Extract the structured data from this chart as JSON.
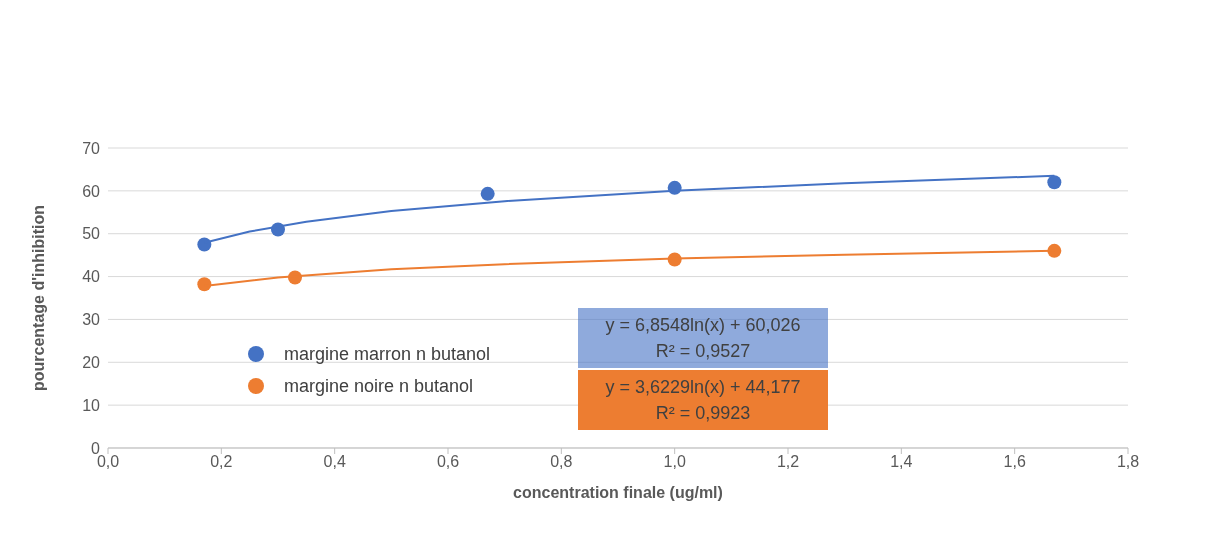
{
  "chart_data": {
    "type": "scatter",
    "xlabel": "concentration finale (ug/ml)",
    "ylabel": "pourcentage d'inhibition",
    "xlim": [
      0,
      1.8
    ],
    "xticks": [
      {
        "value": 0,
        "label": "0,0"
      },
      {
        "value": 0.2,
        "label": "0,2"
      },
      {
        "value": 0.4,
        "label": "0,4"
      },
      {
        "value": 0.6,
        "label": "0,6"
      },
      {
        "value": 0.8,
        "label": "0,8"
      },
      {
        "value": 1,
        "label": "1,0"
      },
      {
        "value": 1.2,
        "label": "1,2"
      },
      {
        "value": 1.4,
        "label": "1,4"
      },
      {
        "value": 1.6,
        "label": "1,6"
      },
      {
        "value": 1.8,
        "label": "1,8"
      }
    ],
    "ylim": [
      0,
      70
    ],
    "yticks": [
      0,
      10,
      20,
      30,
      40,
      50,
      60,
      70
    ],
    "grid": "y",
    "legend": "left",
    "series": [
      {
        "name": "margine marron n butanol",
        "color": "#4472c4",
        "marker": "circle",
        "x": [
          0.17,
          0.3,
          0.67,
          1.0,
          1.67
        ],
        "values": [
          47.5,
          51,
          59.3,
          60.7,
          62
        ]
      },
      {
        "name": "margine noire n butanol",
        "color": "#ed7d31",
        "marker": "circle",
        "x": [
          0.17,
          0.33,
          1.0,
          1.67
        ],
        "values": [
          38.2,
          39.8,
          44,
          46
        ]
      },
      {
        "type": "line",
        "color": "#4472c4",
        "marker": "none",
        "x": [
          0.17,
          0.25,
          0.35,
          0.5,
          0.7,
          1.0,
          1.3,
          1.67
        ],
        "values": [
          47.9,
          50.5,
          52.8,
          55.3,
          57.6,
          60,
          61.8,
          63.5
        ]
      },
      {
        "type": "line",
        "color": "#ed7d31",
        "marker": "none",
        "x": [
          0.17,
          0.3,
          0.5,
          0.7,
          1.0,
          1.3,
          1.67
        ],
        "values": [
          37.8,
          39.8,
          41.7,
          42.9,
          44.2,
          45.1,
          46
        ]
      }
    ],
    "annotations": [
      "y = 6,8548ln(x) + 60,026",
      "R² = 0,9527",
      "y = 3,6229ln(x) + 44,177",
      "R² = 0,9923"
    ]
  }
}
